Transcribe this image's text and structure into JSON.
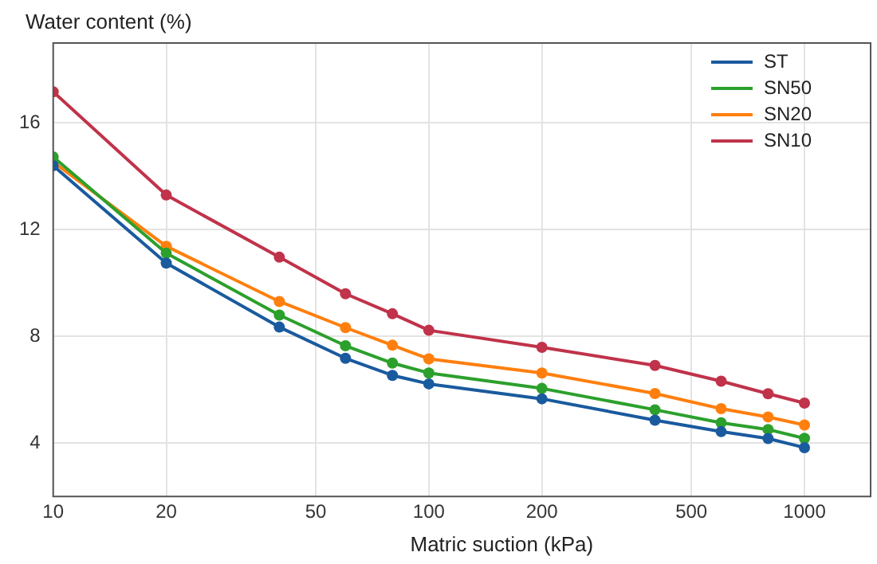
{
  "chart_data": {
    "type": "line",
    "xlabel": "Matric suction (kPa)",
    "ylabel": "Water content (%)",
    "x": [
      10,
      20,
      40,
      60,
      80,
      100,
      200,
      400,
      600,
      800,
      1000
    ],
    "series": [
      {
        "name": "ST",
        "color": "#1a5a9e",
        "values": [
          14.4,
          10.75,
          8.35,
          7.18,
          6.54,
          6.22,
          5.66,
          4.86,
          4.43,
          4.17,
          3.83
        ]
      },
      {
        "name": "SN50",
        "color": "#2ca02c",
        "values": [
          14.73,
          11.12,
          8.8,
          7.65,
          7.0,
          6.63,
          6.05,
          5.25,
          4.76,
          4.51,
          4.18
        ]
      },
      {
        "name": "SN20",
        "color": "#ff7f0e",
        "values": [
          14.54,
          11.38,
          9.31,
          8.33,
          7.67,
          7.16,
          6.63,
          5.86,
          5.29,
          4.98,
          4.68
        ]
      },
      {
        "name": "SN10",
        "color": "#c0334a",
        "values": [
          17.17,
          13.3,
          10.97,
          9.6,
          8.85,
          8.23,
          7.59,
          6.91,
          6.32,
          5.85,
          5.5
        ]
      }
    ],
    "log": "x",
    "xlim": [
      10,
      1500
    ],
    "xticks": [
      10,
      20,
      50,
      100,
      200,
      500,
      1000
    ],
    "ylim": [
      2,
      19
    ],
    "yticks": [
      4,
      8,
      12,
      16
    ],
    "grid": true,
    "legend": "top right",
    "marker": "circle",
    "line_style": "solid"
  }
}
